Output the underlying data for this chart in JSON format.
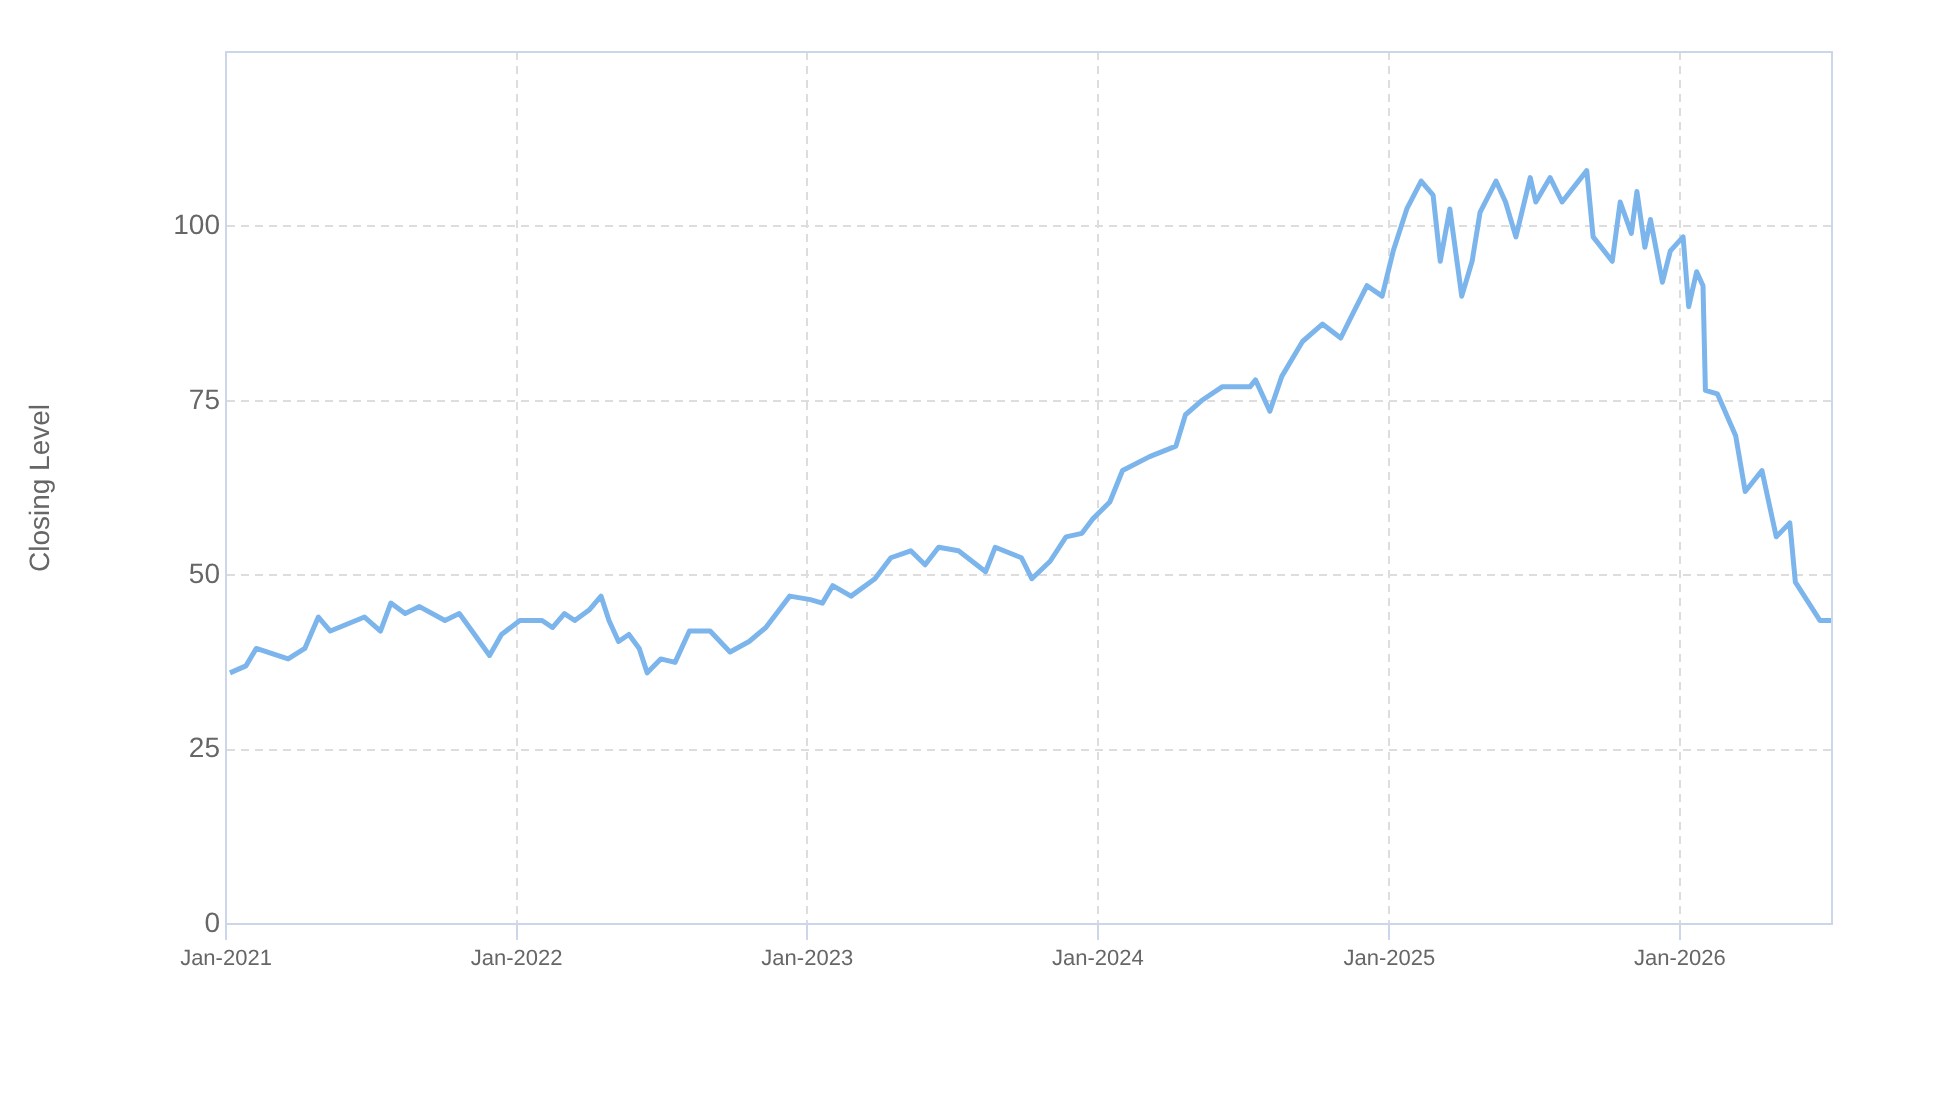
{
  "chart_data": {
    "type": "line",
    "ylabel": "Closing Level",
    "xlim": [
      "2021-01",
      "2026-07-11"
    ],
    "xticks": [
      {
        "value": "2021-01",
        "label": "Jan-2021"
      },
      {
        "value": "2022-01",
        "label": "Jan-2022"
      },
      {
        "value": "2023-01",
        "label": "Jan-2023"
      },
      {
        "value": "2024-01",
        "label": "Jan-2024"
      },
      {
        "value": "2025-01",
        "label": "Jan-2025"
      },
      {
        "value": "2026-01",
        "label": "Jan-2026"
      }
    ],
    "ylim": [
      0,
      125
    ],
    "yticks": [
      0,
      25,
      50,
      75,
      100
    ],
    "grid": true,
    "legend": false,
    "marker": "none",
    "line_style": "solid",
    "series": [
      {
        "color": "#7cb5ec",
        "x": [
          "2021-01-06",
          "2021-01-26",
          "2021-02-08",
          "2021-03-20",
          "2021-04-10",
          "2021-04-27",
          "2021-05-12",
          "2021-06-24",
          "2021-07-14",
          "2021-07-27",
          "2021-08-14",
          "2021-09-01",
          "2021-10-03",
          "2021-10-21",
          "2021-11-06",
          "2021-11-28",
          "2021-12-13",
          "2022-01-05",
          "2022-02-02",
          "2022-02-15",
          "2022-03-02",
          "2022-03-15",
          "2022-04-02",
          "2022-04-17",
          "2022-04-27",
          "2022-05-09",
          "2022-05-22",
          "2022-06-04",
          "2022-06-14",
          "2022-07-01",
          "2022-07-19",
          "2022-08-06",
          "2022-09-01",
          "2022-09-26",
          "2022-10-20",
          "2022-11-10",
          "2022-12-10",
          "2023-01-05",
          "2023-01-20",
          "2023-02-02",
          "2023-02-25",
          "2023-03-27",
          "2023-04-16",
          "2023-05-11",
          "2023-05-29",
          "2023-06-15",
          "2023-07-10",
          "2023-08-13",
          "2023-08-25",
          "2023-09-27",
          "2023-10-10",
          "2023-11-02",
          "2023-11-22",
          "2023-12-12",
          "2023-12-25",
          "2024-01-16",
          "2024-02-01",
          "2024-03-06",
          "2024-04-08",
          "2024-04-20",
          "2024-05-10",
          "2024-06-05",
          "2024-07-10",
          "2024-07-17",
          "2024-08-04",
          "2024-08-19",
          "2024-09-14",
          "2024-10-09",
          "2024-11-01",
          "2024-11-14",
          "2024-12-04",
          "2024-12-23",
          "2025-01-06",
          "2025-01-23",
          "2025-02-10",
          "2025-02-25",
          "2025-03-06",
          "2025-03-18",
          "2025-04-02",
          "2025-04-15",
          "2025-04-25",
          "2025-05-15",
          "2025-05-27",
          "2025-06-09",
          "2025-06-27",
          "2025-07-04",
          "2025-07-22",
          "2025-08-06",
          "2025-09-06",
          "2025-09-14",
          "2025-10-08",
          "2025-10-18",
          "2025-11-01",
          "2025-11-08",
          "2025-11-18",
          "2025-11-25",
          "2025-12-10",
          "2025-12-20",
          "2026-01-05",
          "2026-01-12",
          "2026-01-22",
          "2026-01-30",
          "2026-02-02",
          "2026-02-17",
          "2026-03-12",
          "2026-03-24",
          "2026-04-14",
          "2026-05-02",
          "2026-05-19",
          "2026-05-26",
          "2026-06-26",
          "2026-07-11"
        ],
        "values": [
          36,
          37,
          39.5,
          38,
          39.5,
          44,
          42,
          44,
          42,
          46,
          44.5,
          45.5,
          43.5,
          44.5,
          42,
          38.5,
          41.5,
          43.5,
          43.5,
          42.5,
          44.5,
          43.5,
          45,
          47,
          43.5,
          40.5,
          41.5,
          39.5,
          36,
          38,
          37.5,
          42,
          42,
          39,
          40.5,
          42.5,
          47,
          46.5,
          46,
          48.5,
          47,
          49.5,
          52.5,
          53.5,
          51.5,
          54,
          53.5,
          50.5,
          54,
          52.5,
          49.5,
          52,
          55.5,
          56,
          58,
          60.5,
          65,
          67,
          68.5,
          73,
          75,
          77,
          77,
          78,
          73.5,
          78.5,
          83.5,
          86,
          84,
          87,
          91.5,
          90,
          96.5,
          102.5,
          106.5,
          104.5,
          95,
          102.5,
          90,
          95,
          102,
          106.5,
          103.5,
          98.5,
          107,
          103.5,
          107,
          103.5,
          108,
          98.5,
          95,
          103.5,
          99,
          105,
          97,
          101,
          92,
          96.5,
          98.5,
          88.5,
          93.5,
          91.5,
          76.5,
          76,
          70,
          62,
          65,
          55.5,
          57.5,
          49,
          43.5,
          43.5
        ]
      }
    ]
  }
}
